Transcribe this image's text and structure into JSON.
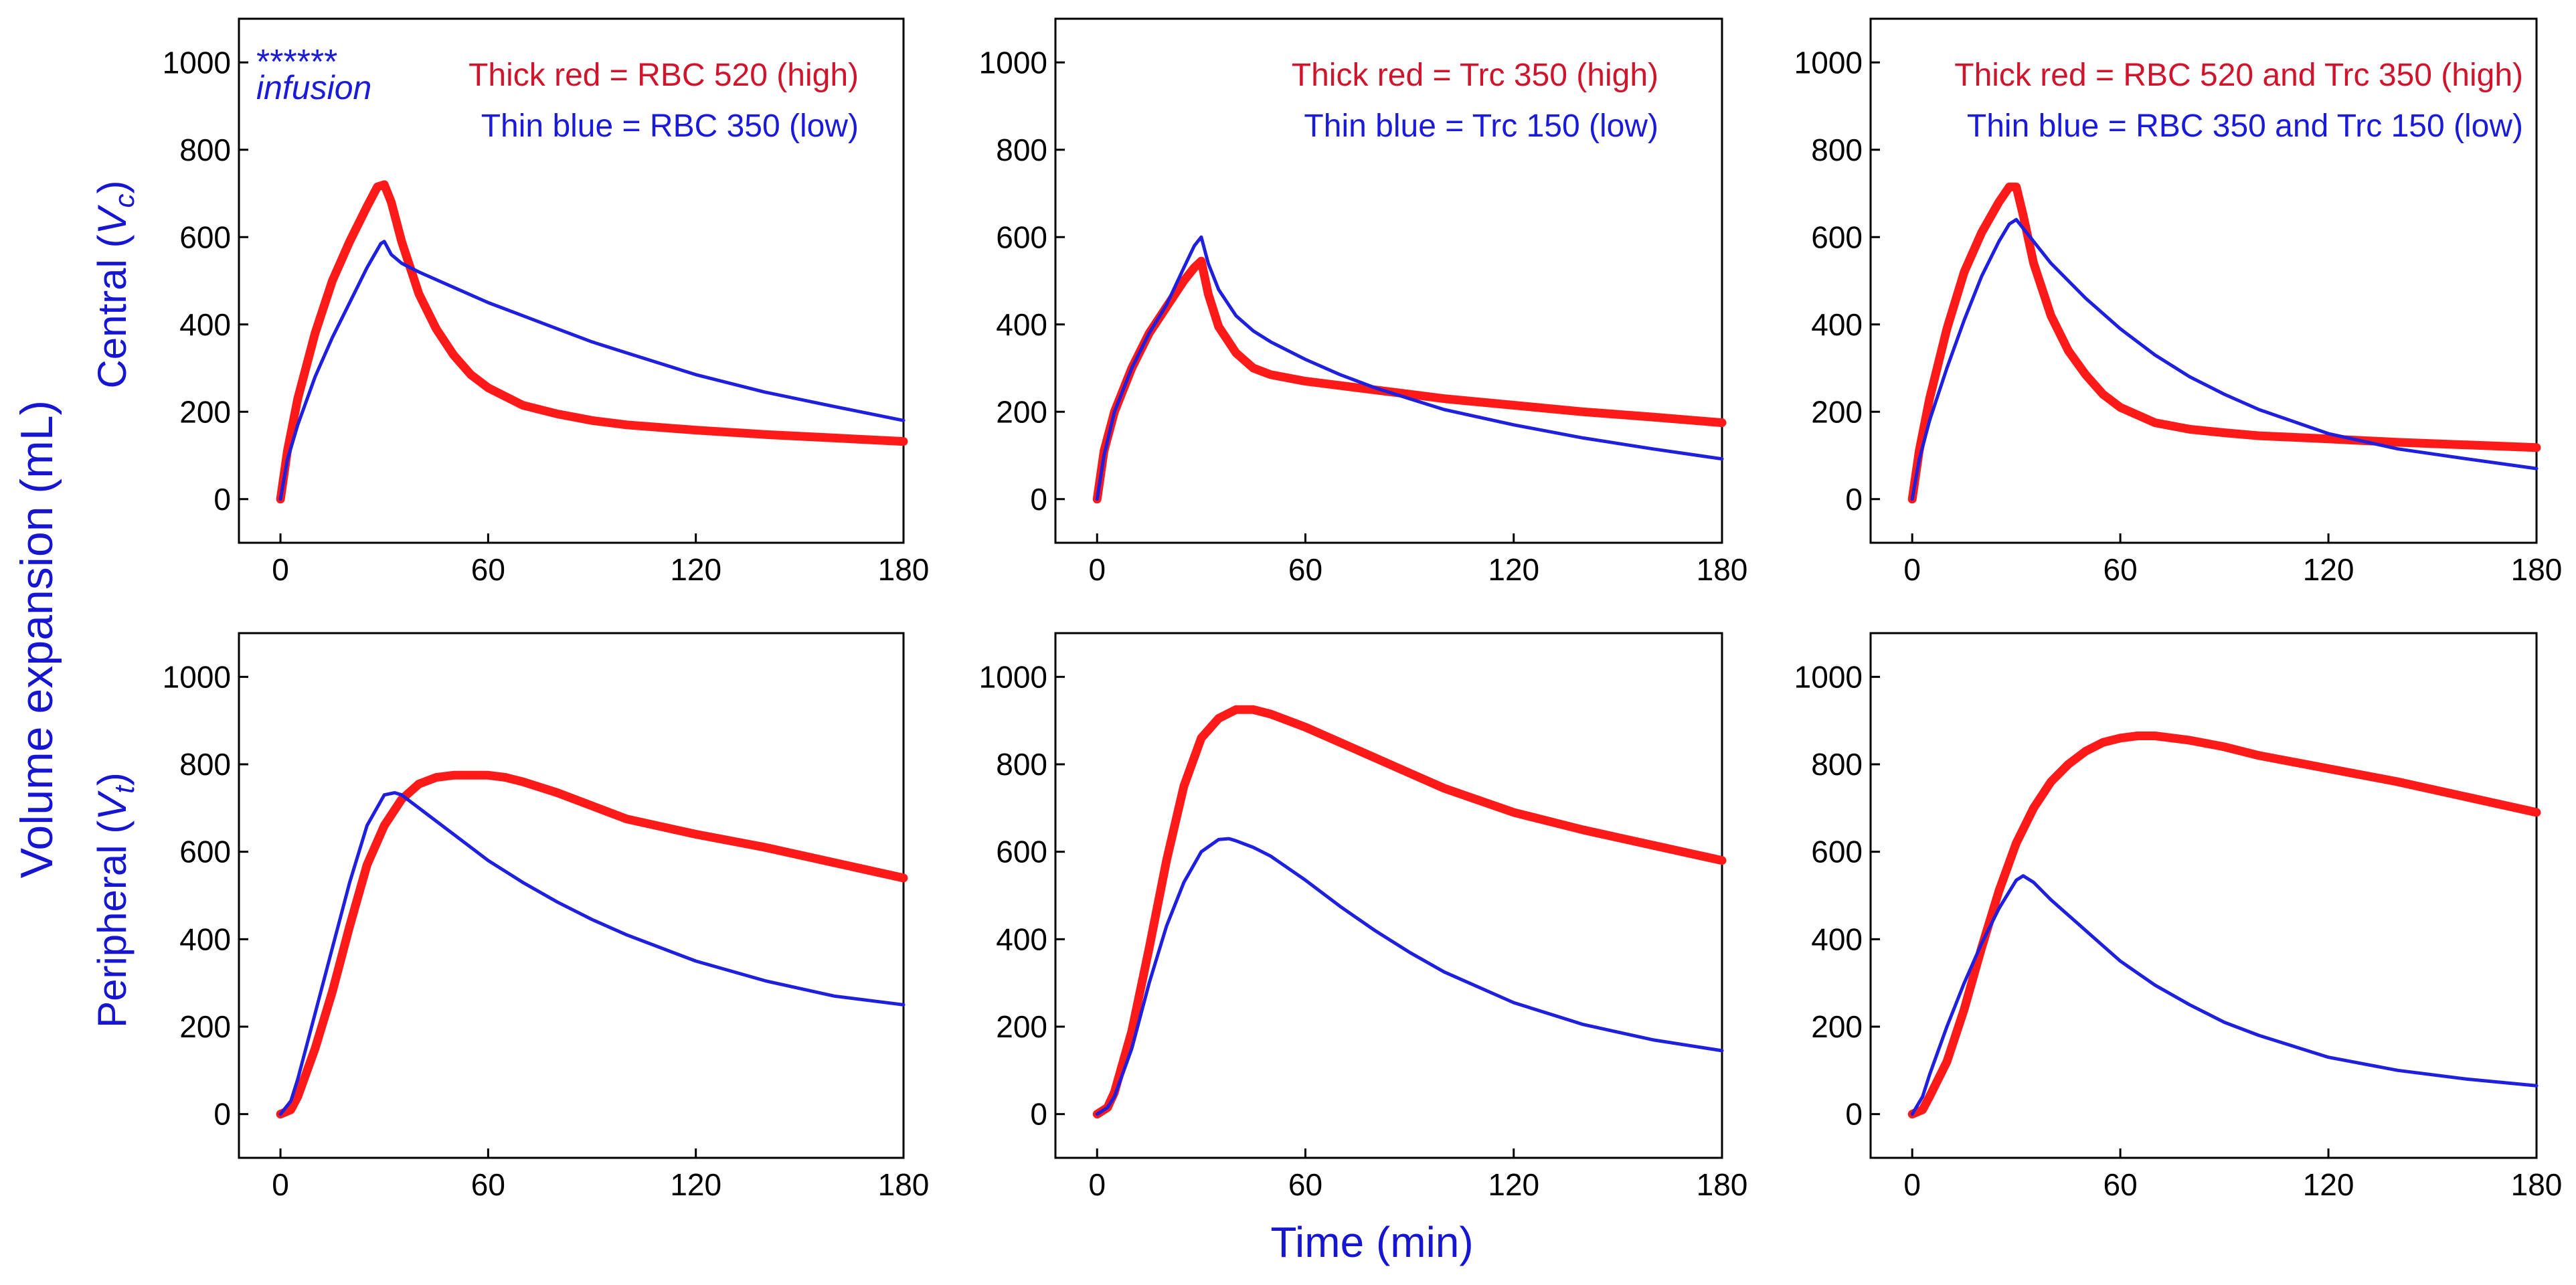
{
  "figure": {
    "ylabel": "Volume expansion (mL)",
    "xlabel": "Time (min)",
    "row_labels": [
      {
        "prefix": "Central (",
        "sym": "V",
        "sub": "c",
        "suffix": ")"
      },
      {
        "prefix": "Peripheral (",
        "sym": "V",
        "sub": "t",
        "suffix": ")"
      }
    ],
    "infusion_marker": {
      "stars": "******",
      "label": "infusion",
      "x_start": 0,
      "x_end": 30
    },
    "colors": {
      "high": "#ff1a1a",
      "low": "#1f1fe0",
      "legend_high": "#d0142c",
      "legend_low": "#1a1adb"
    }
  },
  "chart_data": [
    {
      "type": "line",
      "row": "central",
      "xlim": [
        -12,
        180
      ],
      "ylim": [
        -100,
        1100
      ],
      "xticks": [
        0,
        60,
        120,
        180
      ],
      "yticks": [
        0,
        200,
        400,
        600,
        800,
        1000
      ],
      "legend": [
        "Thick red = RBC 520 (high)",
        "Thin blue = RBC 350 (low)"
      ],
      "series": [
        {
          "name": "RBC 520 (high)",
          "style": "thick-red",
          "x": [
            0,
            2,
            5,
            10,
            15,
            20,
            25,
            28,
            30,
            32,
            35,
            40,
            45,
            50,
            55,
            60,
            70,
            80,
            90,
            100,
            120,
            140,
            160,
            180
          ],
          "y": [
            0,
            110,
            230,
            380,
            500,
            590,
            670,
            715,
            720,
            680,
            590,
            470,
            390,
            330,
            285,
            255,
            215,
            195,
            180,
            170,
            158,
            148,
            140,
            132
          ]
        },
        {
          "name": "RBC 350 (low)",
          "style": "thin-blue",
          "x": [
            0,
            2,
            5,
            10,
            15,
            20,
            25,
            29,
            30,
            32,
            35,
            40,
            50,
            60,
            70,
            80,
            90,
            100,
            120,
            140,
            160,
            180
          ],
          "y": [
            0,
            90,
            170,
            280,
            370,
            450,
            530,
            585,
            590,
            560,
            540,
            520,
            485,
            450,
            420,
            390,
            360,
            335,
            285,
            245,
            212,
            180
          ]
        }
      ]
    },
    {
      "type": "line",
      "row": "central",
      "xlim": [
        -12,
        180
      ],
      "ylim": [
        -100,
        1100
      ],
      "xticks": [
        0,
        60,
        120,
        180
      ],
      "yticks": [
        0,
        200,
        400,
        600,
        800,
        1000
      ],
      "legend": [
        "Thick red = Trc 350 (high)",
        "Thin blue = Trc 150 (low)"
      ],
      "series": [
        {
          "name": "Trc 350 (high)",
          "style": "thick-red",
          "x": [
            0,
            2,
            5,
            10,
            15,
            20,
            25,
            28,
            30,
            32,
            35,
            40,
            45,
            50,
            60,
            70,
            80,
            90,
            100,
            120,
            140,
            160,
            180
          ],
          "y": [
            0,
            110,
            200,
            300,
            380,
            440,
            500,
            530,
            545,
            470,
            395,
            335,
            300,
            285,
            270,
            260,
            250,
            240,
            230,
            215,
            200,
            188,
            175
          ]
        },
        {
          "name": "Trc 150 (low)",
          "style": "thin-blue",
          "x": [
            0,
            2,
            5,
            10,
            15,
            20,
            25,
            28,
            30,
            32,
            35,
            40,
            45,
            50,
            60,
            70,
            80,
            90,
            100,
            120,
            140,
            160,
            180
          ],
          "y": [
            0,
            100,
            200,
            300,
            380,
            445,
            530,
            580,
            600,
            540,
            480,
            420,
            385,
            360,
            320,
            285,
            255,
            230,
            205,
            170,
            140,
            115,
            92
          ]
        }
      ]
    },
    {
      "type": "line",
      "row": "central",
      "xlim": [
        -12,
        180
      ],
      "ylim": [
        -100,
        1100
      ],
      "xticks": [
        0,
        60,
        120,
        180
      ],
      "yticks": [
        0,
        200,
        400,
        600,
        800,
        1000
      ],
      "legend": [
        "Thick red = RBC 520 and Trc 350 (high)",
        "Thin blue = RBC 350 and Trc 150 (low)"
      ],
      "series": [
        {
          "name": "RBC 520 and Trc 350 (high)",
          "style": "thick-red",
          "x": [
            0,
            2,
            5,
            10,
            15,
            20,
            25,
            28,
            30,
            32,
            35,
            40,
            45,
            50,
            55,
            60,
            70,
            80,
            90,
            100,
            120,
            140,
            160,
            180
          ],
          "y": [
            0,
            110,
            230,
            390,
            520,
            610,
            680,
            715,
            715,
            650,
            540,
            420,
            340,
            285,
            240,
            210,
            175,
            160,
            152,
            145,
            138,
            130,
            124,
            118
          ]
        },
        {
          "name": "RBC 350 and Trc 150 (low)",
          "style": "thin-blue",
          "x": [
            0,
            2,
            5,
            10,
            15,
            20,
            25,
            28,
            30,
            32,
            35,
            40,
            50,
            60,
            70,
            80,
            90,
            100,
            120,
            140,
            160,
            180
          ],
          "y": [
            0,
            90,
            180,
            300,
            410,
            510,
            590,
            630,
            640,
            620,
            590,
            540,
            460,
            390,
            330,
            280,
            240,
            205,
            150,
            115,
            92,
            70
          ]
        }
      ]
    },
    {
      "type": "line",
      "row": "peripheral",
      "xlim": [
        -12,
        180
      ],
      "ylim": [
        -100,
        1100
      ],
      "xticks": [
        0,
        60,
        120,
        180
      ],
      "yticks": [
        0,
        200,
        400,
        600,
        800,
        1000
      ],
      "legend": [],
      "series": [
        {
          "name": "RBC 520 (high)",
          "style": "thick-red",
          "x": [
            0,
            3,
            5,
            10,
            15,
            20,
            25,
            30,
            35,
            40,
            45,
            50,
            55,
            60,
            65,
            70,
            80,
            90,
            100,
            120,
            140,
            160,
            180
          ],
          "y": [
            0,
            10,
            40,
            150,
            280,
            430,
            570,
            660,
            720,
            755,
            770,
            775,
            775,
            775,
            770,
            760,
            735,
            705,
            675,
            640,
            610,
            575,
            540
          ]
        },
        {
          "name": "RBC 350 (low)",
          "style": "thin-blue",
          "x": [
            0,
            3,
            5,
            10,
            15,
            20,
            25,
            30,
            33,
            35,
            40,
            50,
            60,
            70,
            80,
            90,
            100,
            120,
            140,
            160,
            180
          ],
          "y": [
            0,
            30,
            80,
            230,
            380,
            530,
            660,
            730,
            735,
            730,
            700,
            640,
            580,
            530,
            485,
            445,
            410,
            350,
            305,
            270,
            250
          ]
        }
      ]
    },
    {
      "type": "line",
      "row": "peripheral",
      "xlim": [
        -12,
        180
      ],
      "ylim": [
        -100,
        1100
      ],
      "xticks": [
        0,
        60,
        120,
        180
      ],
      "yticks": [
        0,
        200,
        400,
        600,
        800,
        1000
      ],
      "legend": [],
      "series": [
        {
          "name": "Trc 350 (high)",
          "style": "thick-red",
          "x": [
            0,
            3,
            5,
            10,
            15,
            20,
            25,
            30,
            35,
            40,
            45,
            50,
            60,
            70,
            80,
            90,
            100,
            120,
            140,
            160,
            180
          ],
          "y": [
            0,
            15,
            50,
            190,
            380,
            580,
            750,
            860,
            905,
            925,
            925,
            915,
            885,
            850,
            815,
            780,
            745,
            690,
            650,
            615,
            580
          ]
        },
        {
          "name": "Trc 150 (low)",
          "style": "thin-blue",
          "x": [
            0,
            3,
            5,
            10,
            15,
            20,
            25,
            30,
            35,
            38,
            40,
            45,
            50,
            60,
            70,
            80,
            90,
            100,
            120,
            140,
            160,
            180
          ],
          "y": [
            0,
            15,
            40,
            150,
            300,
            430,
            530,
            600,
            628,
            630,
            625,
            610,
            590,
            535,
            475,
            420,
            370,
            325,
            255,
            205,
            170,
            145
          ]
        }
      ]
    },
    {
      "type": "line",
      "row": "peripheral",
      "xlim": [
        -12,
        180
      ],
      "ylim": [
        -100,
        1100
      ],
      "xticks": [
        0,
        60,
        120,
        180
      ],
      "yticks": [
        0,
        200,
        400,
        600,
        800,
        1000
      ],
      "legend": [],
      "series": [
        {
          "name": "RBC 520 and Trc 350 (high)",
          "style": "thick-red",
          "x": [
            0,
            3,
            5,
            10,
            15,
            20,
            25,
            30,
            35,
            40,
            45,
            50,
            55,
            60,
            65,
            70,
            80,
            90,
            100,
            120,
            140,
            160,
            180
          ],
          "y": [
            0,
            10,
            40,
            120,
            240,
            380,
            510,
            620,
            700,
            760,
            800,
            830,
            850,
            860,
            865,
            865,
            855,
            840,
            820,
            790,
            760,
            725,
            690
          ]
        },
        {
          "name": "RBC 350 and Trc 150 (low)",
          "style": "thin-blue",
          "x": [
            0,
            3,
            5,
            10,
            15,
            20,
            25,
            30,
            32,
            35,
            40,
            50,
            60,
            70,
            80,
            90,
            100,
            120,
            140,
            160,
            180
          ],
          "y": [
            0,
            40,
            90,
            200,
            300,
            390,
            470,
            535,
            545,
            530,
            490,
            420,
            350,
            295,
            250,
            210,
            180,
            130,
            100,
            80,
            65
          ]
        }
      ]
    }
  ]
}
